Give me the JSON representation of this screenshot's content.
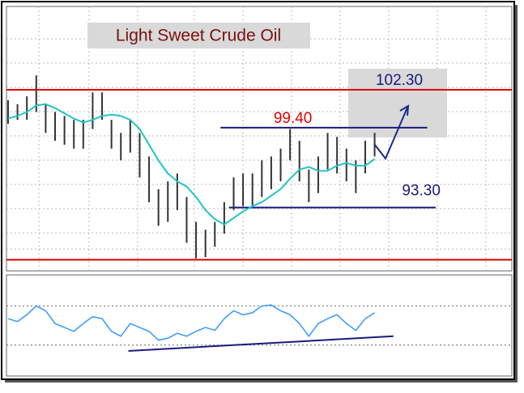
{
  "chart_data": [
    {
      "type": "bar-ohlc",
      "title": "Light Sweet Crude Oil",
      "xlim": [
        0.83,
        54.6
      ],
      "ylim": [
        88.45,
        108.67
      ],
      "grid": true,
      "high": [
        101.5,
        101.2,
        101.8,
        103.4,
        101.2,
        100.6,
        100.3,
        100.0,
        100.0,
        102.1,
        102.1,
        100.0,
        99.0,
        100.0,
        99.0,
        97.2,
        94.7,
        95.3,
        95.9,
        94.1,
        92.2,
        91.6,
        92.2,
        93.7,
        95.6,
        95.9,
        95.9,
        96.9,
        97.2,
        97.8,
        99.3,
        98.4,
        96.2,
        97.2,
        99.0,
        98.7,
        97.8,
        96.9,
        98.4,
        99.0
      ],
      "low": [
        99.7,
        100.0,
        100.0,
        100.6,
        99.0,
        98.4,
        98.1,
        97.8,
        97.8,
        99.3,
        100.0,
        97.8,
        96.9,
        97.5,
        95.6,
        93.7,
        91.9,
        92.2,
        93.1,
        90.6,
        89.4,
        89.5,
        90.3,
        91.3,
        93.1,
        93.4,
        93.4,
        94.1,
        94.7,
        95.3,
        96.9,
        95.3,
        93.7,
        94.4,
        96.2,
        95.9,
        95.3,
        94.4,
        95.9,
        97.2
      ],
      "bar_color": "#333333",
      "moving_average": {
        "color": "#22c4c4",
        "values": [
          100.1,
          100.3,
          100.6,
          101.1,
          101.2,
          100.9,
          100.5,
          100.1,
          99.8,
          100.0,
          100.3,
          100.4,
          100.3,
          100.0,
          99.3,
          98.1,
          96.9,
          95.9,
          95.3,
          94.9,
          94.1,
          93.1,
          92.4,
          92.0,
          92.5,
          93.0,
          93.4,
          93.7,
          94.2,
          94.7,
          95.5,
          96.2,
          96.4,
          96.1,
          96.1,
          96.5,
          96.7,
          96.5,
          96.5,
          97.0
        ]
      },
      "levels": [
        {
          "value": 102.3,
          "color": "#e00000"
        },
        {
          "value": 89.3,
          "color": "#e00000"
        },
        {
          "value": 99.4,
          "label": "99.40",
          "color": "#1a1a7a",
          "label_color": "#e00000",
          "x": [
            23.6,
            45.6
          ]
        },
        {
          "value": 93.3,
          "label": "93.30",
          "color": "#1a1a7a",
          "label_color": "#1a1a7a",
          "x": [
            24.5,
            46.5
          ]
        },
        {
          "value": 102.3,
          "label": "102.30",
          "label_color": "#1a1a7a"
        }
      ]
    },
    {
      "type": "line",
      "xlim": [
        0.83,
        54.6
      ],
      "ylim": [
        0,
        100
      ],
      "levels": [
        70,
        30
      ],
      "color": "#3399ff",
      "values": [
        57,
        54,
        61,
        70,
        65,
        52,
        48,
        44,
        52,
        59,
        57,
        44,
        39,
        52,
        48,
        44,
        35,
        37,
        42,
        39,
        44,
        48,
        45,
        57,
        65,
        61,
        63,
        70,
        71,
        65,
        61,
        52,
        39,
        52,
        57,
        61,
        52,
        45,
        57,
        63
      ],
      "trendline": {
        "x": [
          13.8,
          42
        ],
        "values": [
          24,
          39
        ],
        "color": "#1a1a7a"
      }
    }
  ]
}
